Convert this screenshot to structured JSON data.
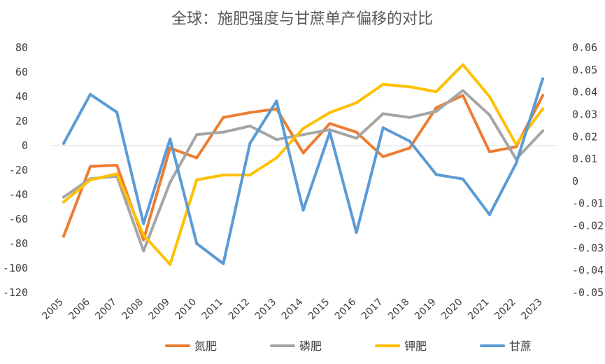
{
  "chart_data": {
    "type": "line",
    "title": "全球：施肥强度与甘蔗单产偏移的对比",
    "categories": [
      "2005",
      "2006",
      "2007",
      "2008",
      "2009",
      "2010",
      "2011",
      "2012",
      "2013",
      "2014",
      "2015",
      "2016",
      "2017",
      "2018",
      "2019",
      "2020",
      "2021",
      "2022",
      "2023"
    ],
    "y_left": {
      "ylim": [
        -120,
        80
      ],
      "ticks": [
        "80",
        "60",
        "40",
        "20",
        "0",
        "-20",
        "-40",
        "-60",
        "-80",
        "-100",
        "-120"
      ]
    },
    "y_right": {
      "ylim": [
        -0.05,
        0.06
      ],
      "ticks": [
        "0.06",
        "0.05",
        "0.04",
        "0.03",
        "0.02",
        "0.01",
        "0",
        "-0.01",
        "-0.02",
        "-0.03",
        "-0.04",
        "-0.05"
      ]
    },
    "grid": false,
    "legend_position": "bottom",
    "series": [
      {
        "name": "氮肥",
        "axis": "left",
        "color": "#ED7D31",
        "values": [
          -74,
          -17,
          -16,
          -77,
          -2,
          -10,
          23,
          27,
          30,
          -6,
          18,
          11,
          -9,
          -2,
          31,
          41,
          -5,
          -1,
          41
        ]
      },
      {
        "name": "磷肥",
        "axis": "left",
        "color": "#A5A5A5",
        "values": [
          -42,
          -27,
          -25,
          -86,
          -30,
          9,
          11,
          16,
          5,
          9,
          13,
          6,
          26,
          23,
          28,
          45,
          25,
          -11,
          12
        ]
      },
      {
        "name": "钾肥",
        "axis": "left",
        "color": "#FFC000",
        "values": [
          -46,
          -28,
          -23,
          -73,
          -97,
          -28,
          -24,
          -24,
          -10,
          14,
          27,
          35,
          50,
          48,
          44,
          66,
          40,
          1,
          30
        ]
      },
      {
        "name": "甘蔗",
        "axis": "right",
        "color": "#5B9BD5",
        "values": [
          0.017,
          0.039,
          0.031,
          -0.019,
          0.019,
          -0.028,
          -0.037,
          0.017,
          0.036,
          -0.013,
          0.022,
          -0.023,
          0.024,
          0.018,
          0.003,
          0.001,
          -0.015,
          0.008,
          0.046
        ]
      }
    ]
  }
}
